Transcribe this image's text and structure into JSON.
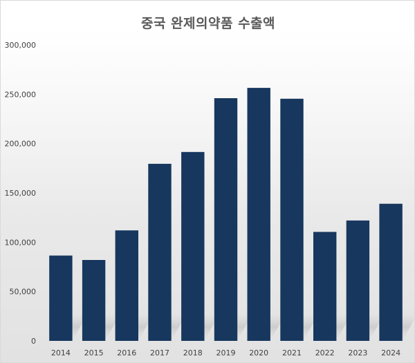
{
  "chart_data": {
    "type": "bar",
    "title": "중국 완제의약품 수출액",
    "xlabel": "",
    "ylabel": "",
    "categories": [
      "2014",
      "2015",
      "2016",
      "2017",
      "2018",
      "2019",
      "2020",
      "2021",
      "2022",
      "2023",
      "2024"
    ],
    "series": [
      {
        "values": [
          86500,
          82000,
          112000,
          179500,
          191500,
          246000,
          256500,
          245500,
          110500,
          122000,
          139000
        ]
      }
    ],
    "ylim": [
      0,
      300000
    ],
    "yticks": [
      0,
      50000,
      100000,
      150000,
      200000,
      250000,
      300000
    ],
    "ytick_labels": [
      "0",
      "50,000",
      "100,000",
      "150,000",
      "200,000",
      "250,000",
      "300,000"
    ],
    "grid": false,
    "legend": "none",
    "bar_color": "#17375e"
  }
}
